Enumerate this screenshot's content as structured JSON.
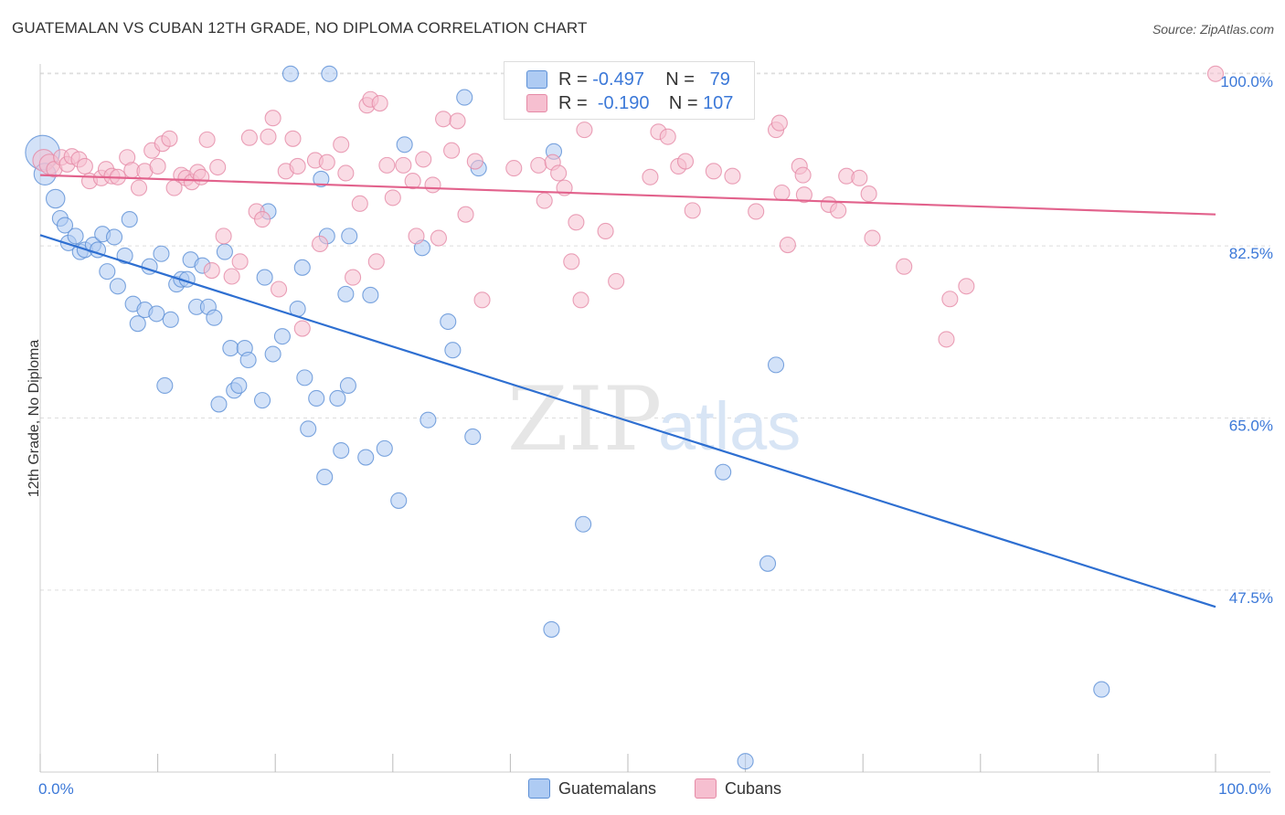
{
  "title": "GUATEMALAN VS CUBAN 12TH GRADE, NO DIPLOMA CORRELATION CHART",
  "source": "Source: ZipAtlas.com",
  "watermark_zip": "ZIP",
  "watermark_atlas": "atlas",
  "stats": {
    "r_label": "R =",
    "n_label": "N =",
    "guatemalans": {
      "r": "-0.497",
      "n": "79"
    },
    "cubans": {
      "r": "-0.190",
      "n": "107"
    }
  },
  "legend": {
    "guatemalans": "Guatemalans",
    "cubans": "Cubans"
  },
  "colors": {
    "guatemalans_fill": "#aecbf3",
    "guatemalans_stroke": "#5b8fd6",
    "guatemalans_line": "#2e6fd1",
    "cubans_fill": "#f6bfd0",
    "cubans_stroke": "#e58aa6",
    "cubans_line": "#e2628c",
    "tick_label": "#3b78d8",
    "grid": "#dddddd"
  },
  "chart_data": {
    "type": "scatter",
    "ylabel": "12th Grade, No Diploma",
    "xlabel": "",
    "xlim": [
      0,
      100
    ],
    "ylim": [
      29,
      101
    ],
    "x_tick_labels": [
      {
        "x": 0,
        "label": "0.0%"
      },
      {
        "x": 100,
        "label": "100.0%"
      }
    ],
    "y_ticks": [
      {
        "y": 100,
        "label": "100.0%"
      },
      {
        "y": 82.5,
        "label": "82.5%"
      },
      {
        "y": 65,
        "label": "65.0%"
      },
      {
        "y": 47.5,
        "label": "47.5%"
      }
    ],
    "x_minor_ticks": [
      0,
      10,
      20,
      30,
      40,
      50,
      60,
      70,
      80,
      90,
      100
    ],
    "series": [
      {
        "name": "Guatemalans",
        "trend": [
          [
            0,
            83.6
          ],
          [
            100,
            45.8
          ]
        ],
        "points": [
          [
            0.2,
            92.0,
            2.2
          ],
          [
            0.4,
            89.8,
            1.4
          ],
          [
            1.3,
            87.3,
            1.2
          ],
          [
            1.7,
            85.3,
            1
          ],
          [
            2.1,
            84.6,
            1
          ],
          [
            2.4,
            82.8,
            1
          ],
          [
            3.0,
            83.5,
            1
          ],
          [
            3.4,
            81.9,
            1
          ],
          [
            3.8,
            82.1,
            1
          ],
          [
            4.5,
            82.6,
            1
          ],
          [
            4.9,
            82.1,
            1
          ],
          [
            5.3,
            83.7,
            1
          ],
          [
            5.7,
            79.9,
            1
          ],
          [
            6.3,
            83.4,
            1
          ],
          [
            6.6,
            78.4,
            1
          ],
          [
            7.2,
            81.5,
            1
          ],
          [
            7.6,
            85.2,
            1
          ],
          [
            7.9,
            76.6,
            1
          ],
          [
            8.3,
            74.6,
            1
          ],
          [
            8.9,
            76.0,
            1
          ],
          [
            9.3,
            80.4,
            1
          ],
          [
            9.9,
            75.6,
            1
          ],
          [
            10.3,
            81.7,
            1
          ],
          [
            10.6,
            68.3,
            1
          ],
          [
            11.1,
            75.0,
            1
          ],
          [
            11.6,
            78.6,
            1
          ],
          [
            12.0,
            79.1,
            1
          ],
          [
            12.5,
            79.1,
            1
          ],
          [
            12.8,
            81.1,
            1
          ],
          [
            13.3,
            76.3,
            1
          ],
          [
            13.8,
            80.5,
            1
          ],
          [
            14.3,
            76.3,
            1
          ],
          [
            14.8,
            75.2,
            1
          ],
          [
            15.2,
            66.4,
            1
          ],
          [
            15.7,
            81.9,
            1
          ],
          [
            16.2,
            72.1,
            1
          ],
          [
            16.5,
            67.8,
            1
          ],
          [
            16.9,
            68.3,
            1
          ],
          [
            17.4,
            72.1,
            1
          ],
          [
            17.7,
            70.9,
            1
          ],
          [
            18.9,
            66.8,
            1
          ],
          [
            19.1,
            79.3,
            1
          ],
          [
            19.4,
            86.0,
            1
          ],
          [
            19.8,
            71.5,
            1
          ],
          [
            20.6,
            73.3,
            1
          ],
          [
            21.3,
            100.0,
            1
          ],
          [
            21.9,
            76.1,
            1
          ],
          [
            22.3,
            80.3,
            1
          ],
          [
            22.5,
            69.1,
            1
          ],
          [
            22.8,
            63.9,
            1
          ],
          [
            23.5,
            67.0,
            1
          ],
          [
            23.9,
            89.3,
            1
          ],
          [
            24.2,
            59.0,
            1
          ],
          [
            24.4,
            83.5,
            1
          ],
          [
            24.6,
            100.0,
            1
          ],
          [
            25.3,
            67.0,
            1
          ],
          [
            25.6,
            61.7,
            1
          ],
          [
            26.0,
            77.6,
            1
          ],
          [
            26.3,
            83.5,
            1
          ],
          [
            26.2,
            68.3,
            1
          ],
          [
            27.7,
            61.0,
            1
          ],
          [
            28.1,
            77.5,
            1
          ],
          [
            29.3,
            61.9,
            1
          ],
          [
            30.5,
            56.6,
            1
          ],
          [
            31.0,
            92.8,
            1
          ],
          [
            32.5,
            82.3,
            1
          ],
          [
            33.0,
            64.8,
            1
          ],
          [
            34.7,
            74.8,
            1
          ],
          [
            35.1,
            71.9,
            1
          ],
          [
            36.1,
            97.6,
            1
          ],
          [
            36.8,
            63.1,
            1
          ],
          [
            37.3,
            90.4,
            1
          ],
          [
            43.5,
            43.5,
            1
          ],
          [
            43.7,
            92.1,
            1
          ],
          [
            46.2,
            54.2,
            1
          ],
          [
            58.1,
            59.5,
            1
          ],
          [
            60.0,
            30.1,
            1
          ],
          [
            61.9,
            50.2,
            1
          ],
          [
            62.6,
            70.4,
            1
          ],
          [
            90.3,
            37.4,
            1
          ]
        ]
      },
      {
        "name": "Cubans",
        "trend": [
          [
            0,
            89.7
          ],
          [
            100,
            85.7
          ]
        ],
        "points": [
          [
            0.3,
            91.2,
            1.4
          ],
          [
            0.8,
            90.8,
            1.3
          ],
          [
            1.2,
            90.3,
            1
          ],
          [
            1.8,
            91.5,
            1
          ],
          [
            2.3,
            90.8,
            1
          ],
          [
            2.7,
            91.6,
            1
          ],
          [
            3.3,
            91.3,
            1
          ],
          [
            3.8,
            90.6,
            1
          ],
          [
            4.2,
            89.1,
            1
          ],
          [
            5.2,
            89.4,
            1
          ],
          [
            5.6,
            90.3,
            1
          ],
          [
            6.1,
            89.6,
            1
          ],
          [
            6.6,
            89.5,
            1
          ],
          [
            7.4,
            91.5,
            1
          ],
          [
            7.8,
            90.2,
            1
          ],
          [
            8.4,
            88.4,
            1
          ],
          [
            8.9,
            90.1,
            1
          ],
          [
            9.5,
            92.2,
            1
          ],
          [
            10.0,
            90.6,
            1
          ],
          [
            10.4,
            92.9,
            1
          ],
          [
            11.0,
            93.4,
            1
          ],
          [
            11.4,
            88.4,
            1
          ],
          [
            12.0,
            89.7,
            1
          ],
          [
            12.4,
            89.4,
            1
          ],
          [
            12.9,
            89.0,
            1
          ],
          [
            13.4,
            90.0,
            1
          ],
          [
            13.7,
            89.5,
            1
          ],
          [
            14.2,
            93.3,
            1
          ],
          [
            14.6,
            80.0,
            1
          ],
          [
            15.1,
            90.5,
            1
          ],
          [
            15.6,
            83.5,
            1
          ],
          [
            16.3,
            79.4,
            1
          ],
          [
            17.0,
            80.9,
            1
          ],
          [
            17.8,
            93.5,
            1
          ],
          [
            18.4,
            86.0,
            1
          ],
          [
            18.9,
            85.2,
            1
          ],
          [
            19.4,
            93.6,
            1
          ],
          [
            19.8,
            95.5,
            1
          ],
          [
            20.3,
            78.1,
            1
          ],
          [
            20.9,
            90.1,
            1
          ],
          [
            21.5,
            93.4,
            1
          ],
          [
            21.9,
            90.6,
            1
          ],
          [
            22.3,
            74.1,
            1
          ],
          [
            23.4,
            91.2,
            1
          ],
          [
            23.8,
            82.7,
            1
          ],
          [
            24.4,
            91.0,
            1
          ],
          [
            25.6,
            92.8,
            1
          ],
          [
            26.0,
            89.9,
            1
          ],
          [
            26.6,
            79.3,
            1
          ],
          [
            27.2,
            86.8,
            1
          ],
          [
            27.8,
            96.8,
            1
          ],
          [
            28.1,
            97.4,
            1
          ],
          [
            28.6,
            80.9,
            1
          ],
          [
            28.9,
            97.0,
            1
          ],
          [
            29.5,
            90.7,
            1
          ],
          [
            30.0,
            87.4,
            1
          ],
          [
            30.9,
            90.7,
            1
          ],
          [
            31.7,
            89.1,
            1
          ],
          [
            32.0,
            83.5,
            1
          ],
          [
            32.6,
            91.3,
            1
          ],
          [
            33.4,
            88.7,
            1
          ],
          [
            33.9,
            83.3,
            1
          ],
          [
            34.3,
            95.4,
            1
          ],
          [
            35.0,
            92.2,
            1
          ],
          [
            35.5,
            95.2,
            1
          ],
          [
            36.2,
            85.7,
            1
          ],
          [
            37.0,
            91.1,
            1
          ],
          [
            37.6,
            77.0,
            1
          ],
          [
            40.3,
            90.4,
            1
          ],
          [
            42.4,
            90.7,
            1
          ],
          [
            42.9,
            87.1,
            1
          ],
          [
            43.6,
            91.0,
            1
          ],
          [
            44.1,
            89.9,
            1
          ],
          [
            44.6,
            88.4,
            1
          ],
          [
            45.2,
            80.9,
            1
          ],
          [
            45.6,
            84.9,
            1
          ],
          [
            46.0,
            77.0,
            1
          ],
          [
            46.3,
            94.3,
            1
          ],
          [
            48.1,
            84.0,
            1
          ],
          [
            49.0,
            78.9,
            1
          ],
          [
            51.9,
            89.5,
            1
          ],
          [
            52.6,
            94.1,
            1
          ],
          [
            53.4,
            93.6,
            1
          ],
          [
            54.3,
            90.6,
            1
          ],
          [
            54.9,
            91.1,
            1
          ],
          [
            55.5,
            86.1,
            1
          ],
          [
            57.3,
            90.1,
            1
          ],
          [
            58.9,
            89.6,
            1
          ],
          [
            60.9,
            86.0,
            1
          ],
          [
            62.6,
            94.3,
            1
          ],
          [
            62.9,
            95.0,
            1
          ],
          [
            63.1,
            87.9,
            1
          ],
          [
            63.6,
            82.6,
            1
          ],
          [
            64.6,
            90.6,
            1
          ],
          [
            64.9,
            89.7,
            1
          ],
          [
            65.0,
            87.7,
            1
          ],
          [
            67.1,
            86.7,
            1
          ],
          [
            67.9,
            86.1,
            1
          ],
          [
            68.6,
            89.6,
            1
          ],
          [
            69.7,
            89.4,
            1
          ],
          [
            70.5,
            87.8,
            1
          ],
          [
            70.8,
            83.3,
            1
          ],
          [
            73.5,
            80.4,
            1
          ],
          [
            77.1,
            73.0,
            1
          ],
          [
            77.4,
            77.1,
            1
          ],
          [
            78.8,
            78.4,
            1
          ],
          [
            100.0,
            100.0,
            1
          ]
        ]
      }
    ]
  }
}
